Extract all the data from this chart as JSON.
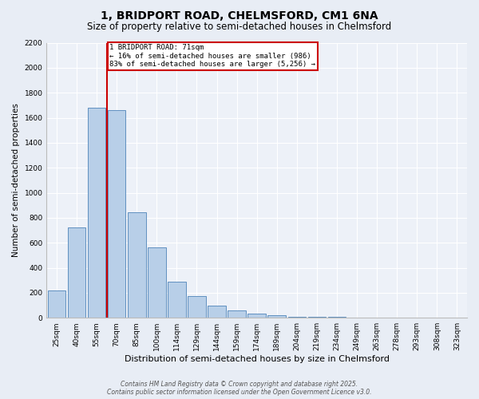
{
  "title1": "1, BRIDPORT ROAD, CHELMSFORD, CM1 6NA",
  "title2": "Size of property relative to semi-detached houses in Chelmsford",
  "xlabel": "Distribution of semi-detached houses by size in Chelmsford",
  "ylabel": "Number of semi-detached properties",
  "categories": [
    "25sqm",
    "40sqm",
    "55sqm",
    "70sqm",
    "85sqm",
    "100sqm",
    "114sqm",
    "129sqm",
    "144sqm",
    "159sqm",
    "174sqm",
    "189sqm",
    "204sqm",
    "219sqm",
    "234sqm",
    "249sqm",
    "263sqm",
    "278sqm",
    "293sqm",
    "308sqm",
    "323sqm"
  ],
  "values": [
    220,
    720,
    1680,
    1660,
    845,
    560,
    290,
    175,
    95,
    60,
    35,
    20,
    10,
    7,
    5,
    3,
    2,
    1,
    1,
    0,
    0
  ],
  "bar_color": "#b8cfe8",
  "bar_edge_color": "#6090c0",
  "property_size": "71sqm",
  "pct_smaller": 16,
  "pct_larger": 83,
  "n_smaller": 986,
  "n_larger": 5256,
  "annotation_box_color": "#cc0000",
  "line_color": "#cc0000",
  "ylim_max": 2200,
  "yticks": [
    0,
    200,
    400,
    600,
    800,
    1000,
    1200,
    1400,
    1600,
    1800,
    2000,
    2200
  ],
  "footer1": "Contains HM Land Registry data © Crown copyright and database right 2025.",
  "footer2": "Contains public sector information licensed under the Open Government Licence v3.0.",
  "background_color": "#e8edf5",
  "plot_bg_color": "#edf1f8",
  "title1_fontsize": 10,
  "title2_fontsize": 8.5,
  "xlabel_fontsize": 8,
  "ylabel_fontsize": 7.5,
  "tick_fontsize": 6.5,
  "footer_fontsize": 5.5
}
